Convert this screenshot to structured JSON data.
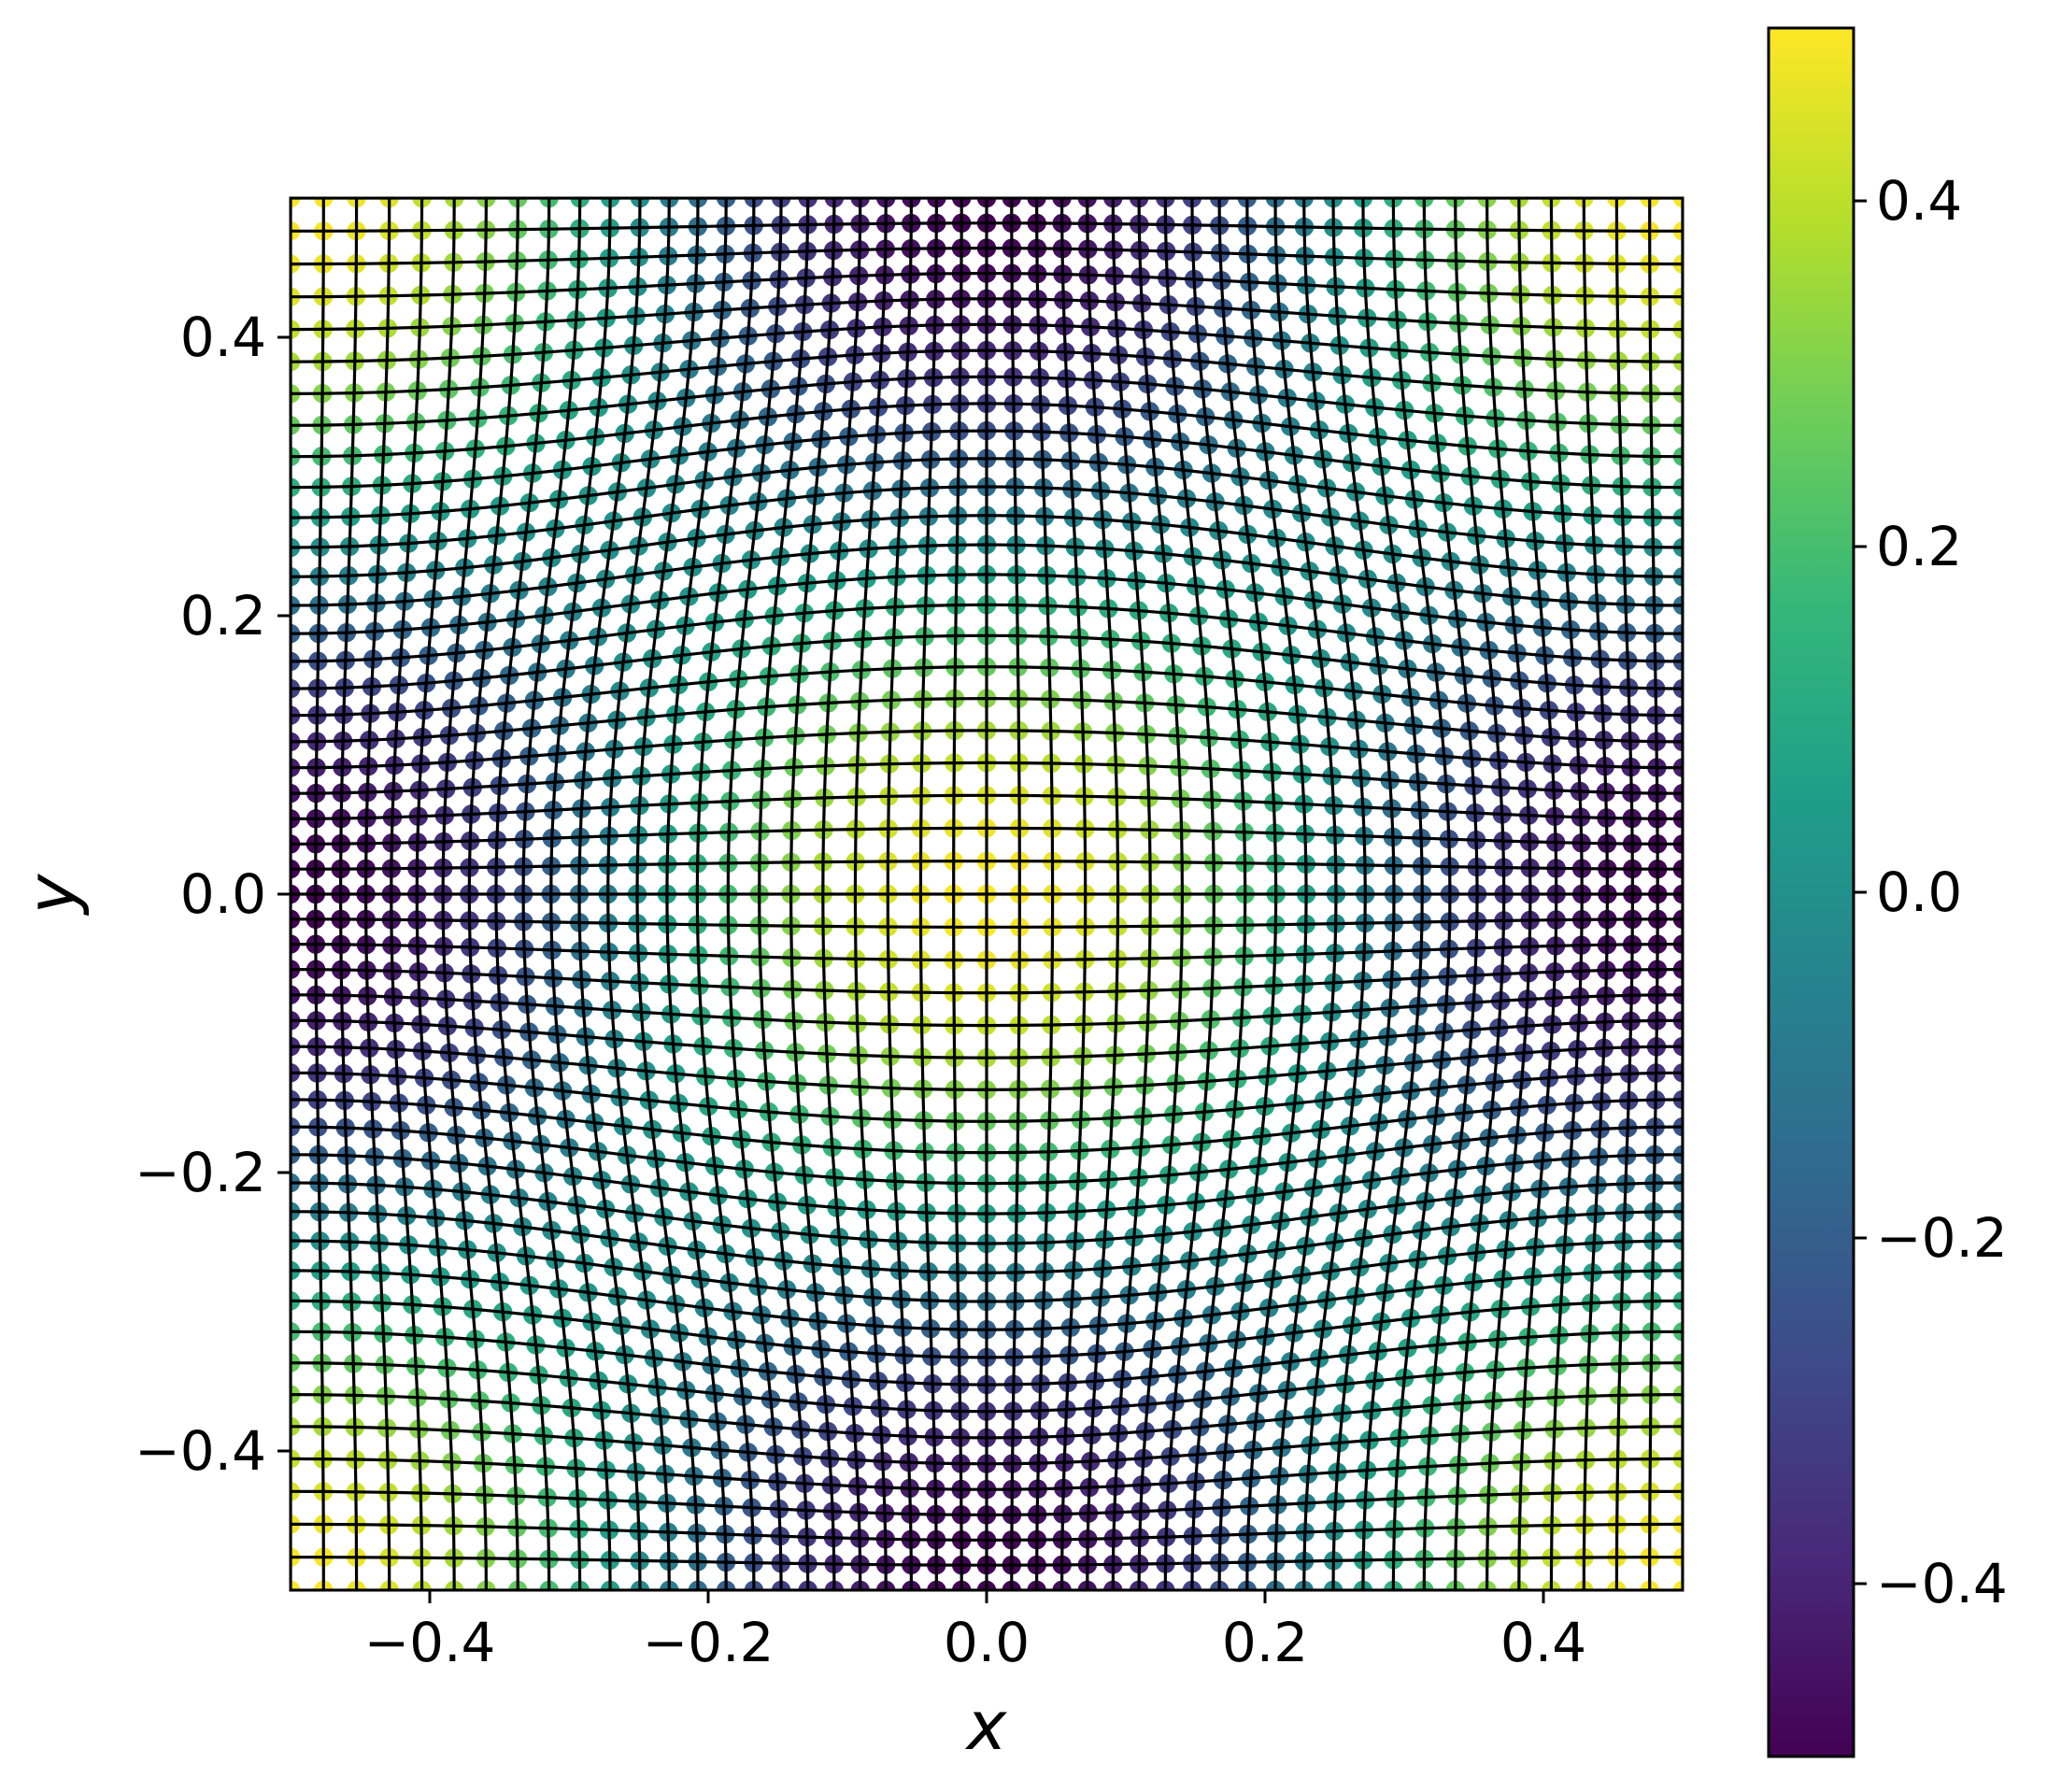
{
  "chart_data": {
    "type": "scatter",
    "title": "",
    "xlabel": "x",
    "ylabel": "y",
    "xlim": [
      -0.5,
      0.5
    ],
    "ylim": [
      -0.5,
      0.5
    ],
    "xticks": [
      -0.4,
      -0.2,
      0.0,
      0.2,
      0.4
    ],
    "yticks": [
      -0.4,
      -0.2,
      0.0,
      0.2,
      0.4
    ],
    "xtick_labels": [
      "−0.4",
      "−0.2",
      "0.0",
      "0.2",
      "0.4"
    ],
    "ytick_labels": [
      "−0.4",
      "−0.2",
      "0.0",
      "0.2",
      "0.4"
    ],
    "grid": false,
    "colormap": "viridis",
    "colorbar": {
      "range": [
        -0.5,
        0.5
      ],
      "ticks": [
        -0.4,
        -0.2,
        0.0,
        0.2,
        0.4
      ],
      "tick_labels": [
        "−0.4",
        "−0.2",
        "0.0",
        "0.2",
        "0.4"
      ]
    },
    "field": "0.5*cos(2*pi*x)*cos(2*pi*y)",
    "series": [
      {
        "kind": "mesh-lines",
        "color": "#000000"
      },
      {
        "kind": "colored-nodes"
      }
    ],
    "sample_values": [
      {
        "x": 0.0,
        "y": 0.0,
        "value": 0.5
      },
      {
        "x": 0.25,
        "y": 0.25,
        "value": 0.0
      },
      {
        "x": 0.5,
        "y": 0.0,
        "value": -0.5
      },
      {
        "x": 0.5,
        "y": 0.5,
        "value": 0.5
      }
    ]
  },
  "colors": {
    "viridis": [
      "#440154",
      "#482878",
      "#3e4989",
      "#31688e",
      "#26828e",
      "#1f9e89",
      "#35b779",
      "#6ece58",
      "#b5de2b",
      "#fde725"
    ],
    "mesh": "#000000",
    "node_edge": "#ffffff"
  }
}
